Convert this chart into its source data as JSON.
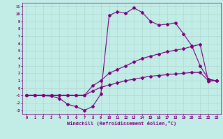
{
  "xlabel": "Windchill (Refroidissement éolien,°C)",
  "xlim": [
    -0.5,
    23.5
  ],
  "ylim": [
    -3.5,
    11.5
  ],
  "xticks": [
    0,
    1,
    2,
    3,
    4,
    5,
    6,
    7,
    8,
    9,
    10,
    11,
    12,
    13,
    14,
    15,
    16,
    17,
    18,
    19,
    20,
    21,
    22,
    23
  ],
  "yticks": [
    -3,
    -2,
    -1,
    0,
    1,
    2,
    3,
    4,
    5,
    6,
    7,
    8,
    9,
    10,
    11
  ],
  "bg_color": "#c2ece6",
  "line_color": "#7b007b",
  "grid_color": "#b0d8d2",
  "line1_x": [
    0,
    1,
    2,
    3,
    4,
    5,
    6,
    7,
    8,
    9,
    10,
    11,
    12,
    13,
    14,
    15,
    16,
    17,
    18,
    19,
    20,
    21,
    22,
    23
  ],
  "line1_y": [
    -1,
    -1,
    -1,
    -1.1,
    -1.4,
    -2.2,
    -2.5,
    -3.0,
    -2.5,
    -0.8,
    9.8,
    10.3,
    10.1,
    10.8,
    10.2,
    9.0,
    8.5,
    8.6,
    8.8,
    7.3,
    5.7,
    3.0,
    1.2,
    1.0
  ],
  "line2_x": [
    0,
    1,
    2,
    3,
    4,
    5,
    6,
    7,
    8,
    9,
    10,
    11,
    12,
    13,
    14,
    15,
    16,
    17,
    18,
    19,
    20,
    21,
    22,
    23
  ],
  "line2_y": [
    -1,
    -1,
    -1,
    -1,
    -1,
    -1,
    -1,
    -1,
    0.3,
    1.0,
    2.0,
    2.5,
    3.0,
    3.5,
    4.0,
    4.3,
    4.6,
    4.9,
    5.1,
    5.3,
    5.6,
    5.9,
    0.9,
    1.0
  ],
  "line3_x": [
    0,
    1,
    2,
    3,
    4,
    5,
    6,
    7,
    8,
    9,
    10,
    11,
    12,
    13,
    14,
    15,
    16,
    17,
    18,
    19,
    20,
    21,
    22,
    23
  ],
  "line3_y": [
    -1,
    -1,
    -1,
    -1,
    -1,
    -1,
    -1,
    -1,
    -0.4,
    0.1,
    0.4,
    0.7,
    1.0,
    1.2,
    1.4,
    1.6,
    1.7,
    1.8,
    1.9,
    2.0,
    2.1,
    2.1,
    1.0,
    1.0
  ]
}
